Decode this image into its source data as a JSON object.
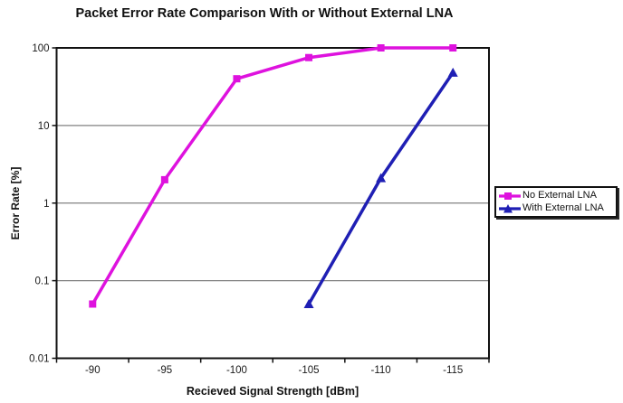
{
  "chart_data": {
    "type": "line",
    "title": "Packet Error Rate Comparison With or Without External LNA",
    "xlabel": "Recieved Signal Strength [dBm]",
    "ylabel": "Error Rate [%]",
    "x_categories": [
      "-90",
      "-95",
      "-100",
      "-105",
      "-110",
      "-115"
    ],
    "y_ticks": [
      "100",
      "10",
      "1",
      "0.1",
      "0.01"
    ],
    "y_scale": "log",
    "ylim": [
      0.01,
      100
    ],
    "grid": "horizontal-decade-gridlines",
    "legend_position": "right-middle",
    "series": [
      {
        "name": "No External LNA",
        "color": "#DE12DE",
        "marker": "square",
        "values": [
          0.05,
          2,
          40,
          75,
          100,
          100
        ]
      },
      {
        "name": "With External LNA",
        "color": "#1F1FB4",
        "marker": "triangle",
        "values": [
          null,
          null,
          null,
          0.05,
          2.1,
          48
        ]
      }
    ]
  },
  "colors": {
    "axis": "#111111",
    "grid": "#808080",
    "text": "#1a1a1a",
    "background": "#ffffff"
  }
}
